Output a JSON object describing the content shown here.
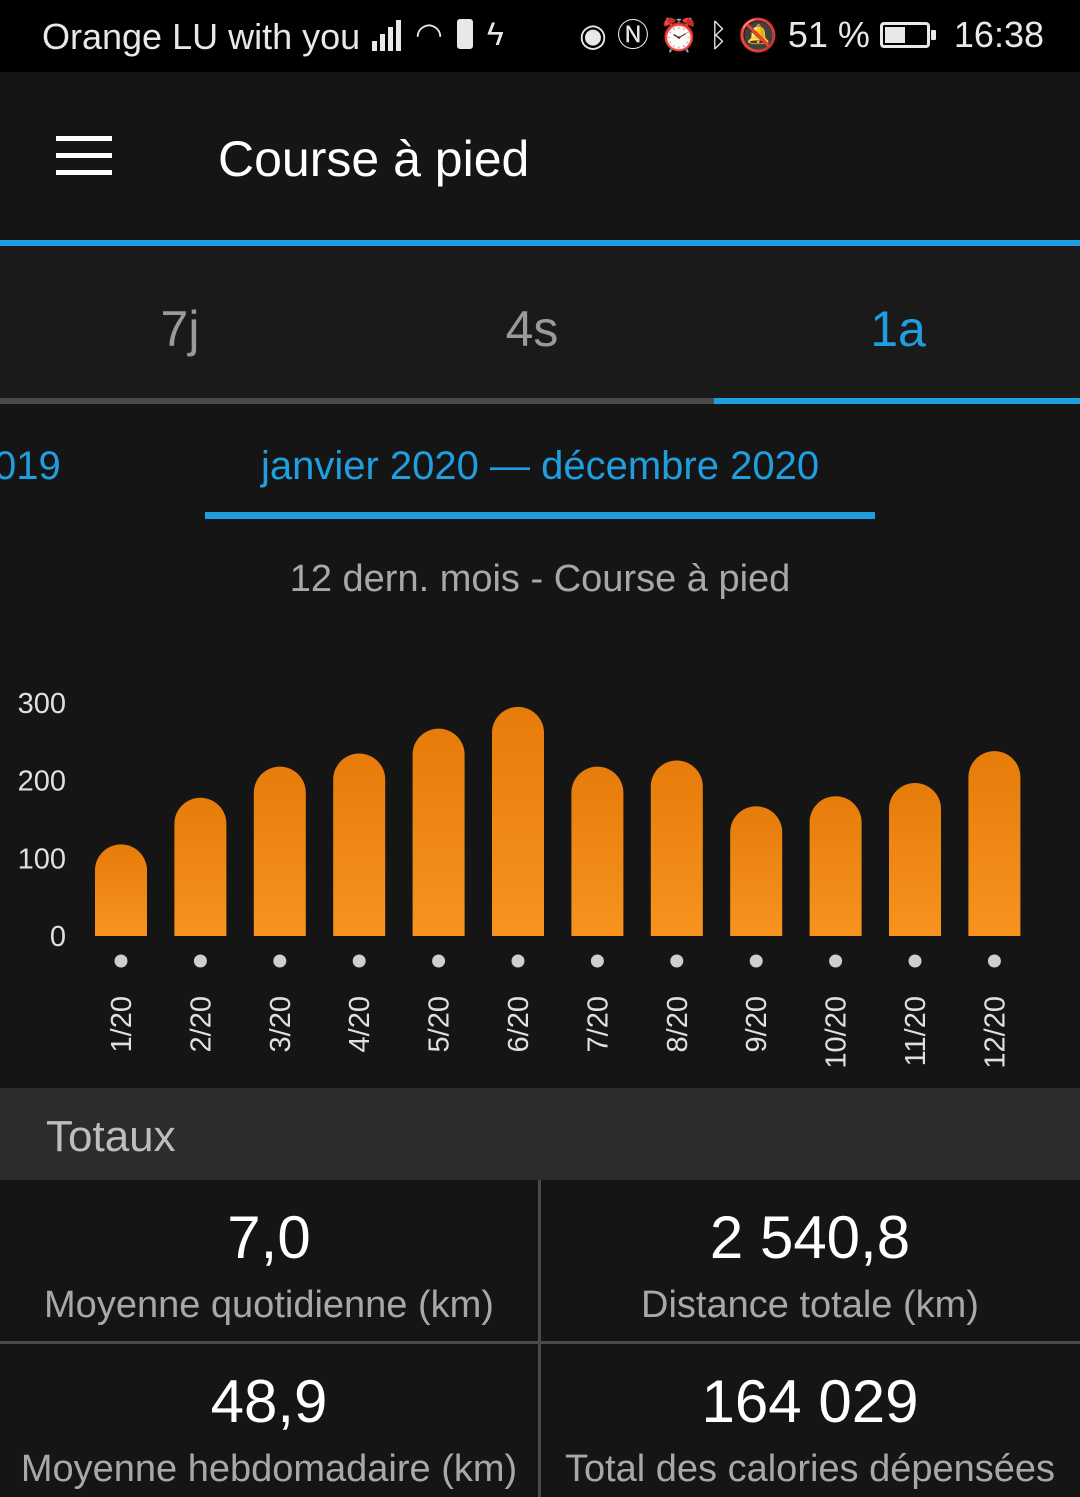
{
  "status_bar": {
    "carrier": "Orange LU with you",
    "battery_percent": "51 %",
    "battery_level": 0.51,
    "time": "16:38",
    "icons": [
      "signal-icon",
      "wifi-icon",
      "battery-saver-icon",
      "activity-icon",
      "eye-icon",
      "nfc-icon",
      "alarm-icon",
      "bluetooth-icon",
      "notifications-off-icon",
      "battery-icon"
    ]
  },
  "app_bar": {
    "title": "Course à pied",
    "menu_icon": "menu-icon"
  },
  "tabs": [
    {
      "label": "7j",
      "active": false
    },
    {
      "label": "4s",
      "active": false
    },
    {
      "label": "1a",
      "active": true
    }
  ],
  "period": {
    "previous_partial": "019",
    "current": "janvier 2020 — décembre 2020"
  },
  "chart_subtitle": "12 dern. mois - Course à pied",
  "chart_data": {
    "type": "bar",
    "categories": [
      "1/20",
      "2/20",
      "3/20",
      "4/20",
      "5/20",
      "6/20",
      "7/20",
      "8/20",
      "9/20",
      "10/20",
      "11/20",
      "12/20"
    ],
    "values": [
      118,
      178,
      218,
      235,
      267,
      295,
      218,
      226,
      167,
      180,
      197,
      238
    ],
    "yticks": [
      0,
      100,
      200,
      300
    ],
    "ylim": [
      0,
      300
    ],
    "bar_color": "#f7931e",
    "bar_color_top": "#e67c0a",
    "grid": false
  },
  "totals": {
    "header": "Totaux",
    "items": [
      {
        "value": "7,0",
        "caption": "Moyenne quotidienne (km)"
      },
      {
        "value": "2 540,8",
        "caption": "Distance totale (km)"
      },
      {
        "value": "48,9",
        "caption": "Moyenne hebdomadaire (km)"
      },
      {
        "value": "164 029",
        "caption": "Total des calories dépensées"
      }
    ]
  }
}
